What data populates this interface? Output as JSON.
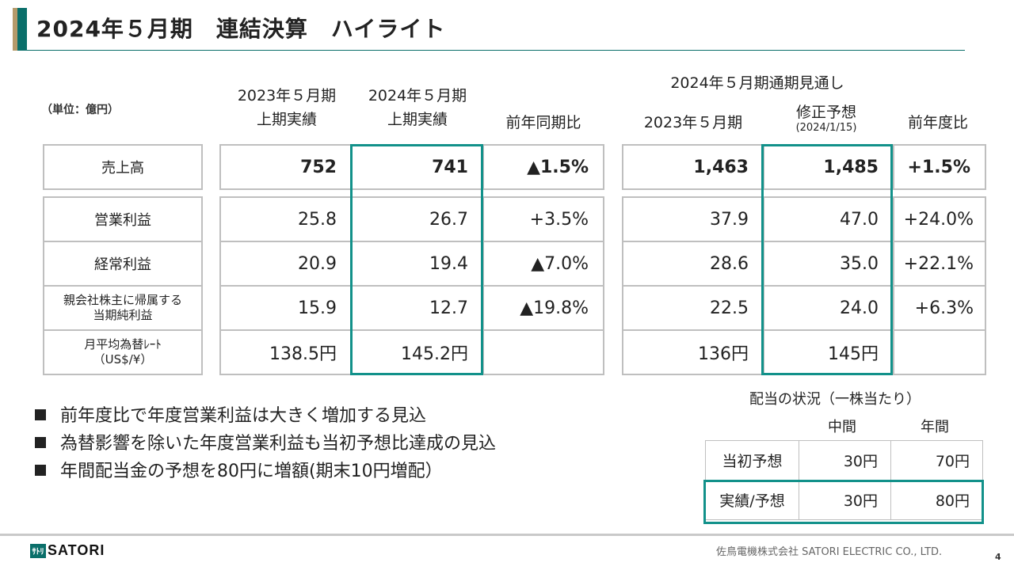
{
  "title": "2024年５月期　連結決算　ハイライト",
  "unit": "（単位：億円）",
  "headers": {
    "h1_top": "2023年５月期",
    "h1_bottom": "上期実績",
    "h2_top": "2024年５月期",
    "h2_bottom": "上期実績",
    "h3": "前年同期比",
    "forecast_group": "2024年５月期通期見通し",
    "h4": "2023年５月期",
    "h5_top": "修正予想",
    "h5_sub": "(2024/1/15)",
    "h6": "前年度比"
  },
  "rows": [
    {
      "label": "売上高",
      "label2": "",
      "v1": "752",
      "v2": "741",
      "v3": "▲1.5%",
      "v4": "1,463",
      "v5": "1,485",
      "v6": "+1.5%"
    },
    {
      "label": "営業利益",
      "label2": "",
      "v1": "25.8",
      "v2": "26.7",
      "v3": "+3.5%",
      "v4": "37.9",
      "v5": "47.0",
      "v6": "+24.0%"
    },
    {
      "label": "経常利益",
      "label2": "",
      "v1": "20.9",
      "v2": "19.4",
      "v3": "▲7.0%",
      "v4": "28.6",
      "v5": "35.0",
      "v6": "+22.1%"
    },
    {
      "label": "親会社株主に帰属する",
      "label2": "当期純利益",
      "v1": "15.9",
      "v2": "12.7",
      "v3": "▲19.8%",
      "v4": "22.5",
      "v5": "24.0",
      "v6": "+6.3%"
    },
    {
      "label": "月平均為替ﾚｰﾄ",
      "label2": "（US$/¥）",
      "v1": "138.5円",
      "v2": "145.2円",
      "v3": "",
      "v4": "136円",
      "v5": "145円",
      "v6": ""
    }
  ],
  "bullets": [
    "前年度比で年度営業利益は大きく増加する見込",
    "為替影響を除いた年度営業利益も当初予想比達成の見込",
    "年間配当金の予想を80円に増額(期末10円増配）"
  ],
  "dividend": {
    "title": "配当の状況（一株当たり）",
    "col_interim": "中間",
    "col_annual": "年間",
    "rows": [
      {
        "label": "当初予想",
        "interim": "30円",
        "annual": "70円"
      },
      {
        "label": "実績/予想",
        "interim": "30円",
        "annual": "80円"
      }
    ]
  },
  "footer": {
    "logo_mark": "ｻﾄﾘ",
    "logo_text": "SATORI",
    "company": "佐鳥電機株式会社  SATORI ELECTRIC CO., LTD.",
    "page": "4"
  },
  "colors": {
    "accent": "#12918a",
    "brand": "#0a6f6a"
  }
}
